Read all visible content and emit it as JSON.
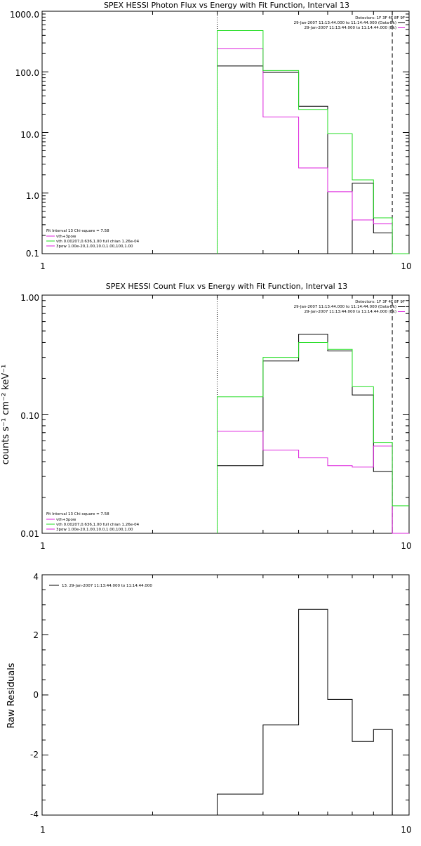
{
  "colors": {
    "black": "#000000",
    "magenta": "#dd22dd",
    "green": "#22dd22"
  },
  "chart_data": [
    {
      "type": "line",
      "step": true,
      "title": "SPEX HESSI Photon Flux vs Energy with Fit Function, Interval 13",
      "ylabel": "",
      "xscale": "log",
      "yscale": "log",
      "xlim": [
        1,
        10
      ],
      "ylim": [
        0.1,
        1000
      ],
      "xticklabels": [
        "1",
        "10"
      ],
      "yticklabels": [
        "0.1",
        "1.0",
        "10.0",
        "100.0",
        "1000.0"
      ],
      "vlines": [
        {
          "x": 3,
          "style": "dotted"
        },
        {
          "x": 9,
          "style": "dashed"
        }
      ],
      "legend_top_right": {
        "header": "Detectors: 1F 3F 4F 8F 9F",
        "entries": [
          {
            "label": "29-Jan-2007 11:13:44.000 to 11:14:44.000 (Data-Bk)",
            "color": "#000000"
          },
          {
            "label": "29-Jan-2007 11:13:44.000 to 11:14:44.000 (Bk)",
            "color": "#dd22dd"
          }
        ]
      },
      "legend_bottom_left": {
        "header": "Fit Interval 13   Chi-square = 7.58",
        "entries": [
          {
            "label": "vth+3pow",
            "color": "#dd22dd"
          },
          {
            "label": "vth 0.00207,0.636,1.00  full chian 1.26e-04",
            "color": "#22dd22"
          },
          {
            "label": "3pow 1.00e-20,1.00,10.0,1.00,100,1.00",
            "color": "#dd22dd"
          }
        ]
      },
      "x_edges": [
        3,
        4,
        5,
        6,
        7,
        8,
        9,
        10
      ],
      "series": [
        {
          "color": "#000000",
          "values": [
            125,
            98,
            27,
            0,
            1.45,
            0.22,
            0
          ]
        },
        {
          "color": "#dd22dd",
          "values": [
            240,
            18,
            2.6,
            1.05,
            0.36,
            0.31,
            0
          ]
        },
        {
          "color": "#22dd22",
          "values": [
            480,
            105,
            24,
            9.5,
            1.65,
            0.39,
            0.1
          ]
        }
      ]
    },
    {
      "type": "line",
      "step": true,
      "title": "SPEX HESSI Count Flux vs Energy with Fit Function, Interval 13",
      "ylabel": "counts s⁻¹ cm⁻² keV⁻¹",
      "xscale": "log",
      "yscale": "log",
      "xlim": [
        1,
        10
      ],
      "ylim": [
        0.01,
        1
      ],
      "xticklabels": [
        "1",
        "10"
      ],
      "yticklabels": [
        "0.01",
        "0.10",
        "1.00"
      ],
      "vlines": [
        {
          "x": 3,
          "style": "dotted"
        },
        {
          "x": 9,
          "style": "dashed"
        }
      ],
      "legend_top_right": {
        "header": "Detectors: 1F 3F 4F 8F 9F",
        "entries": [
          {
            "label": "29-Jan-2007 11:13:44.000 to 11:14:44.000 (Data-Bk)",
            "color": "#000000"
          },
          {
            "label": "29-Jan-2007 11:13:44.000 to 11:14:44.000 (Bk)",
            "color": "#dd22dd"
          }
        ]
      },
      "legend_bottom_left": {
        "header": "Fit Interval 13   Chi-square = 7.58",
        "entries": [
          {
            "label": "vth+3pow",
            "color": "#dd22dd"
          },
          {
            "label": "vth 0.00207,0.636,1.00  full chian 1.26e-04",
            "color": "#22dd22"
          },
          {
            "label": "3pow 1.00e-20,1.00,10.0,1.00,100,1.00",
            "color": "#dd22dd"
          }
        ]
      },
      "x_edges": [
        3,
        4,
        5,
        6,
        7,
        8,
        9,
        10
      ],
      "series": [
        {
          "color": "#000000",
          "values": [
            0.037,
            0.28,
            0.47,
            0.34,
            0.145,
            0.033,
            0
          ]
        },
        {
          "color": "#dd22dd",
          "values": [
            0.072,
            0.05,
            0.043,
            0.037,
            0.036,
            0.054,
            0
          ]
        },
        {
          "color": "#22dd22",
          "values": [
            0.14,
            0.3,
            0.4,
            0.35,
            0.17,
            0.058,
            0.017
          ]
        }
      ]
    },
    {
      "type": "line",
      "step": true,
      "title": "",
      "ylabel": "Raw Residuals",
      "xscale": "log",
      "yscale": "linear",
      "xlim": [
        1,
        10
      ],
      "ylim": [
        -4,
        4
      ],
      "xticklabels": [
        "1",
        "10"
      ],
      "yticklabels": [
        "-4",
        "-2",
        "0",
        "2",
        "4"
      ],
      "legend": [
        {
          "label": "13. 29-Jan-2007 11:13:44.000 to 11:14:44.000",
          "color": "#000000"
        }
      ],
      "x_edges": [
        3,
        4,
        5,
        6,
        7,
        8,
        9
      ],
      "series": [
        {
          "color": "#000000",
          "values": [
            -3.3,
            -1.0,
            2.85,
            -0.15,
            -1.55,
            -1.15
          ]
        }
      ]
    }
  ]
}
